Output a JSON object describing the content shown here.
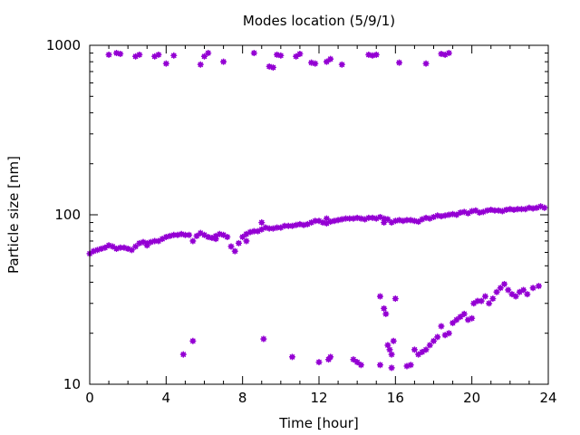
{
  "chart_data": {
    "type": "scatter",
    "title": "Modes location (5/9/1)",
    "xlabel": "Time [hour]",
    "ylabel": "Particle size [nm]",
    "xlim": [
      0,
      24
    ],
    "ylim": [
      10,
      1000
    ],
    "yscale": "log",
    "x_ticks": [
      0,
      4,
      8,
      12,
      16,
      20,
      24
    ],
    "x_tick_labels": [
      "0",
      "4",
      "8",
      "12",
      "16",
      "20",
      "24"
    ],
    "y_ticks": [
      10,
      100,
      1000
    ],
    "y_tick_labels": [
      "10",
      "100",
      "1000"
    ],
    "grid": false,
    "legend": "none",
    "marker_color": "#9400d3",
    "series": [
      {
        "points": [
          [
            0.0,
            59
          ],
          [
            0.2,
            61
          ],
          [
            0.4,
            62
          ],
          [
            0.6,
            63
          ],
          [
            0.8,
            64
          ],
          [
            1.0,
            66
          ],
          [
            1.2,
            65
          ],
          [
            1.4,
            63
          ],
          [
            1.6,
            64
          ],
          [
            1.8,
            64
          ],
          [
            2.0,
            63
          ],
          [
            2.2,
            62
          ],
          [
            2.4,
            65
          ],
          [
            2.6,
            68
          ],
          [
            2.8,
            69
          ],
          [
            3.0,
            68
          ],
          [
            3.2,
            69
          ],
          [
            3.4,
            70
          ],
          [
            3.6,
            70
          ],
          [
            3.8,
            72
          ],
          [
            4.0,
            74
          ],
          [
            4.2,
            75
          ],
          [
            4.4,
            76
          ],
          [
            4.6,
            76
          ],
          [
            4.8,
            77
          ],
          [
            5.0,
            76
          ],
          [
            5.2,
            76
          ],
          [
            5.4,
            70
          ],
          [
            5.6,
            75
          ],
          [
            5.8,
            78
          ],
          [
            6.0,
            76
          ],
          [
            6.2,
            74
          ],
          [
            6.4,
            73
          ],
          [
            6.6,
            75
          ],
          [
            6.8,
            77
          ],
          [
            7.0,
            76
          ],
          [
            7.2,
            74
          ],
          [
            7.4,
            65
          ],
          [
            7.6,
            61
          ],
          [
            7.8,
            68
          ],
          [
            8.0,
            74
          ],
          [
            8.2,
            77
          ],
          [
            8.4,
            79
          ],
          [
            8.6,
            80
          ],
          [
            8.8,
            80
          ],
          [
            9.0,
            82
          ],
          [
            9.2,
            84
          ],
          [
            9.4,
            83
          ],
          [
            9.6,
            83
          ],
          [
            9.8,
            84
          ],
          [
            10.0,
            84
          ],
          [
            10.2,
            86
          ],
          [
            10.4,
            86
          ],
          [
            10.6,
            86
          ],
          [
            10.8,
            87
          ],
          [
            11.0,
            88
          ],
          [
            11.2,
            87
          ],
          [
            11.4,
            88
          ],
          [
            11.6,
            90
          ],
          [
            11.8,
            92
          ],
          [
            12.0,
            92
          ],
          [
            12.2,
            90
          ],
          [
            12.4,
            89
          ],
          [
            12.6,
            91
          ],
          [
            12.8,
            92
          ],
          [
            13.0,
            93
          ],
          [
            13.2,
            94
          ],
          [
            13.4,
            95
          ],
          [
            13.6,
            95
          ],
          [
            13.8,
            95
          ],
          [
            14.0,
            96
          ],
          [
            14.2,
            95
          ],
          [
            14.4,
            94
          ],
          [
            14.6,
            96
          ],
          [
            14.8,
            96
          ],
          [
            15.0,
            95
          ],
          [
            15.2,
            97
          ],
          [
            15.4,
            95
          ],
          [
            15.6,
            94
          ],
          [
            15.8,
            90
          ],
          [
            16.0,
            92
          ],
          [
            16.2,
            93
          ],
          [
            16.4,
            92
          ],
          [
            16.6,
            93
          ],
          [
            16.8,
            93
          ],
          [
            17.0,
            92
          ],
          [
            17.2,
            91
          ],
          [
            17.4,
            94
          ],
          [
            17.6,
            96
          ],
          [
            17.8,
            95
          ],
          [
            18.0,
            97
          ],
          [
            18.2,
            99
          ],
          [
            18.4,
            98
          ],
          [
            18.6,
            99
          ],
          [
            18.8,
            100
          ],
          [
            19.0,
            101
          ],
          [
            19.2,
            100
          ],
          [
            19.4,
            103
          ],
          [
            19.6,
            104
          ],
          [
            19.8,
            102
          ],
          [
            20.0,
            105
          ],
          [
            20.2,
            106
          ],
          [
            20.4,
            103
          ],
          [
            20.6,
            104
          ],
          [
            20.8,
            106
          ],
          [
            21.0,
            107
          ],
          [
            21.2,
            106
          ],
          [
            21.4,
            106
          ],
          [
            21.6,
            105
          ],
          [
            21.8,
            107
          ],
          [
            22.0,
            108
          ],
          [
            22.2,
            107
          ],
          [
            22.4,
            108
          ],
          [
            22.6,
            108
          ],
          [
            22.8,
            108
          ],
          [
            23.0,
            110
          ],
          [
            23.2,
            109
          ],
          [
            23.4,
            110
          ],
          [
            23.6,
            112
          ],
          [
            23.8,
            110
          ],
          [
            8.2,
            70
          ],
          [
            9.0,
            90
          ],
          [
            3.0,
            66
          ],
          [
            6.6,
            72
          ],
          [
            12.4,
            95
          ],
          [
            15.4,
            90
          ],
          [
            1.0,
            880
          ],
          [
            1.4,
            900
          ],
          [
            1.6,
            890
          ],
          [
            2.4,
            860
          ],
          [
            2.6,
            880
          ],
          [
            3.4,
            860
          ],
          [
            3.6,
            880
          ],
          [
            4.0,
            780
          ],
          [
            4.4,
            870
          ],
          [
            5.8,
            770
          ],
          [
            6.0,
            860
          ],
          [
            6.2,
            900
          ],
          [
            7.0,
            800
          ],
          [
            8.6,
            900
          ],
          [
            9.4,
            750
          ],
          [
            9.6,
            740
          ],
          [
            9.8,
            880
          ],
          [
            10.0,
            870
          ],
          [
            10.8,
            860
          ],
          [
            11.0,
            890
          ],
          [
            11.6,
            790
          ],
          [
            11.8,
            780
          ],
          [
            12.4,
            800
          ],
          [
            12.6,
            830
          ],
          [
            13.2,
            770
          ],
          [
            14.6,
            880
          ],
          [
            14.8,
            870
          ],
          [
            15.0,
            880
          ],
          [
            16.2,
            790
          ],
          [
            17.6,
            780
          ],
          [
            18.4,
            890
          ],
          [
            18.6,
            880
          ],
          [
            18.8,
            900
          ],
          [
            4.9,
            15
          ],
          [
            5.4,
            18
          ],
          [
            9.1,
            18.5
          ],
          [
            10.6,
            14.5
          ],
          [
            12.0,
            13.5
          ],
          [
            12.5,
            14
          ],
          [
            12.6,
            14.5
          ],
          [
            13.8,
            14
          ],
          [
            14.0,
            13.5
          ],
          [
            14.2,
            13
          ],
          [
            15.2,
            33
          ],
          [
            15.4,
            28
          ],
          [
            15.5,
            26
          ],
          [
            15.6,
            17
          ],
          [
            15.7,
            16
          ],
          [
            15.8,
            15
          ],
          [
            15.9,
            18
          ],
          [
            15.8,
            12.5
          ],
          [
            15.2,
            13
          ],
          [
            16.0,
            32
          ],
          [
            16.6,
            12.8
          ],
          [
            16.8,
            13
          ],
          [
            17.0,
            16
          ],
          [
            17.2,
            15
          ],
          [
            17.4,
            15.5
          ],
          [
            17.6,
            16
          ],
          [
            17.8,
            17
          ],
          [
            18.0,
            18
          ],
          [
            18.2,
            19
          ],
          [
            18.4,
            22
          ],
          [
            18.6,
            19.5
          ],
          [
            18.8,
            20
          ],
          [
            19.0,
            23
          ],
          [
            19.2,
            24
          ],
          [
            19.4,
            25
          ],
          [
            19.6,
            26
          ],
          [
            19.8,
            24
          ],
          [
            20.0,
            24.5
          ],
          [
            20.1,
            30
          ],
          [
            20.3,
            31
          ],
          [
            20.5,
            31
          ],
          [
            20.7,
            33
          ],
          [
            20.9,
            30
          ],
          [
            21.1,
            32
          ],
          [
            21.3,
            35
          ],
          [
            21.5,
            37
          ],
          [
            21.7,
            39
          ],
          [
            21.9,
            36
          ],
          [
            22.1,
            34
          ],
          [
            22.3,
            33
          ],
          [
            22.5,
            35
          ],
          [
            22.7,
            36
          ],
          [
            22.9,
            34
          ],
          [
            23.2,
            37
          ],
          [
            23.5,
            38
          ]
        ]
      }
    ]
  }
}
